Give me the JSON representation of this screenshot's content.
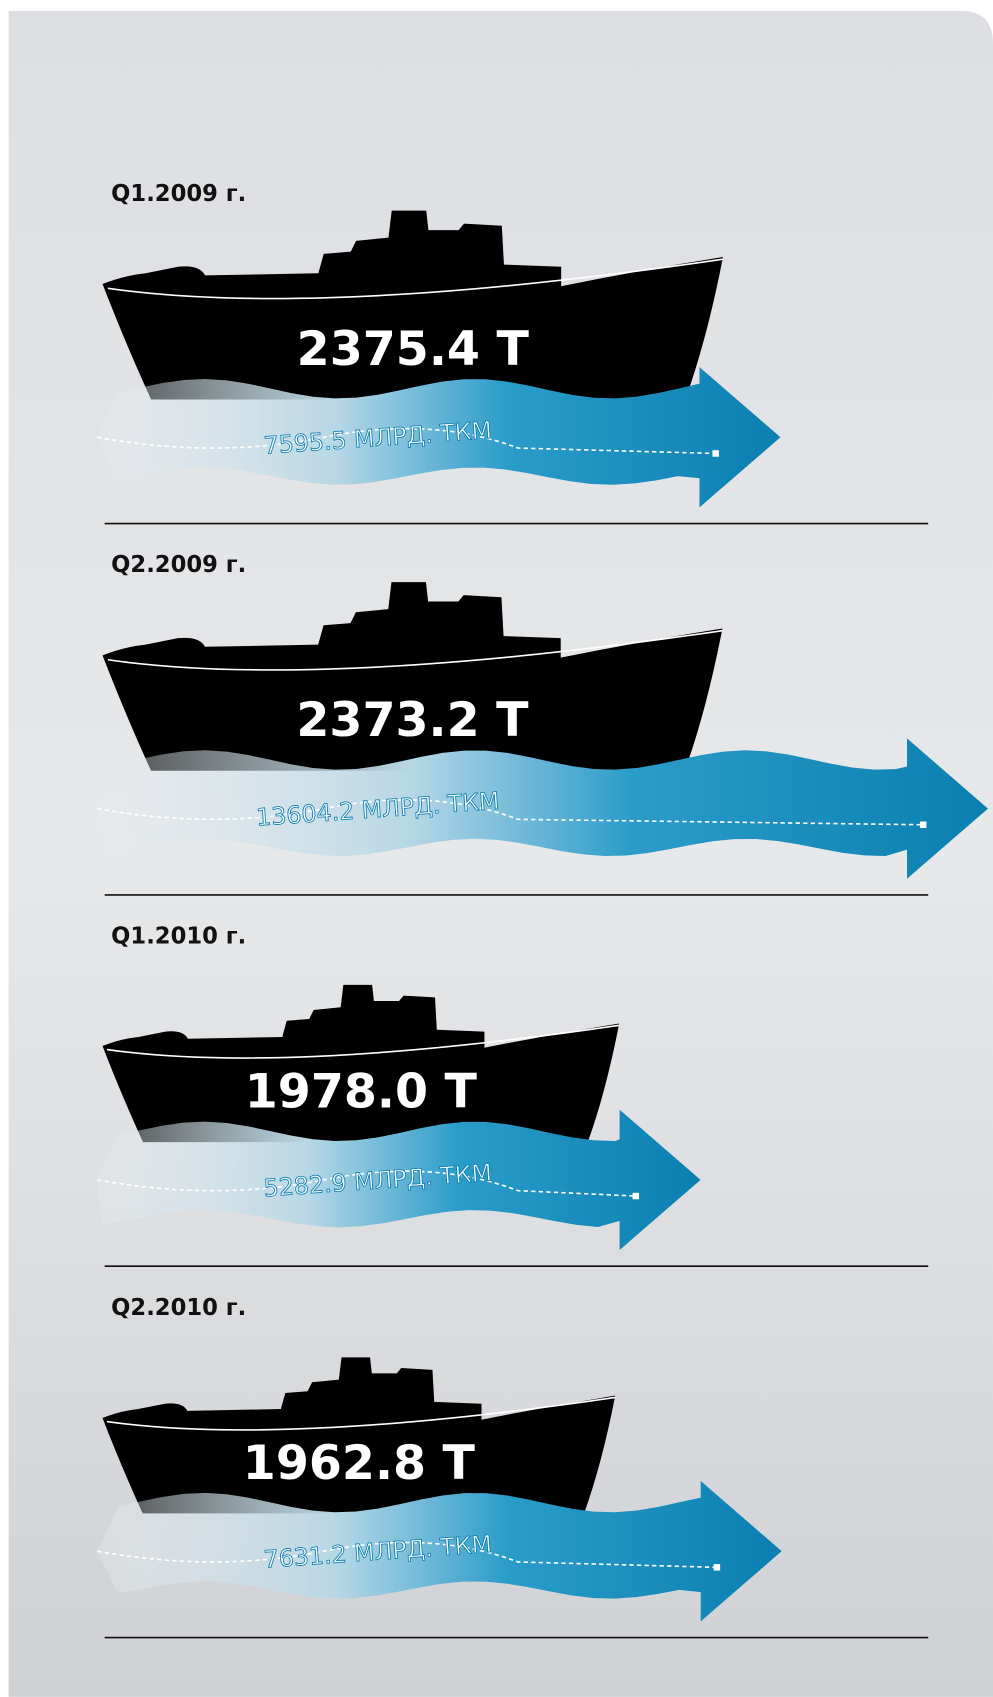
{
  "chart_data": {
    "type": "ship-arrow",
    "categories": [
      "Q1.2009 г.",
      "Q2.2009 г.",
      "Q1.2010 г.",
      "Q2.2010 г."
    ],
    "series": [
      {
        "color": "#000000",
        "values": [
          2375.4,
          2373.2,
          1978.0,
          1962.8
        ],
        "value_labels": [
          "2375.4 Т",
          "2373.2 Т",
          "1978.0 Т",
          "1962.8 Т"
        ]
      },
      {
        "color": "#0a7fb0",
        "values": [
          7595.5,
          13604.2,
          5282.9,
          7631.2
        ],
        "value_labels": [
          "7595.5 МЛРД. ТКМ",
          "13604.2 МЛРД. ТКМ",
          "5282.9 МЛРД. ТКМ",
          "7631.2 МЛРД. ТКМ"
        ]
      }
    ]
  }
}
